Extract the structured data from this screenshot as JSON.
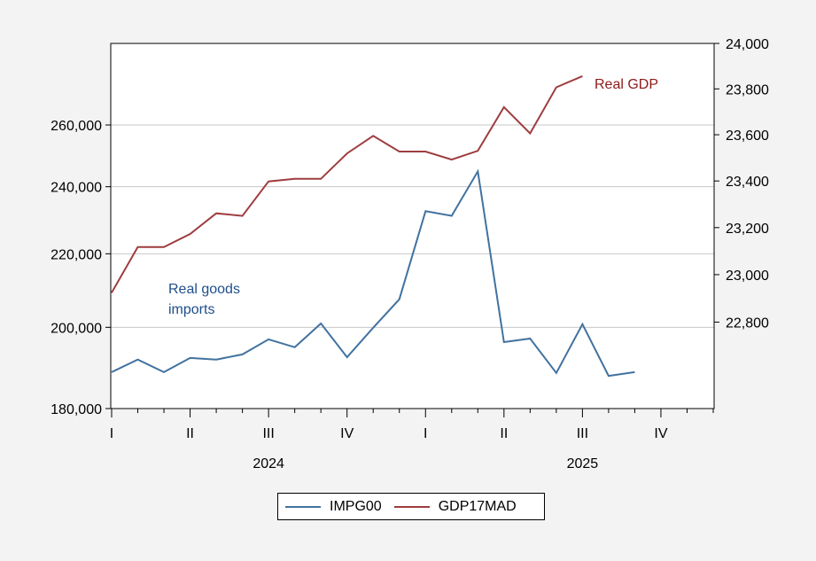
{
  "chart_data": {
    "type": "line",
    "title": "",
    "x": [
      "2024M01",
      "2024M02",
      "2024M03",
      "2024M04",
      "2024M05",
      "2024M06",
      "2024M07",
      "2024M08",
      "2024M09",
      "2024M10",
      "2024M11",
      "2024M12",
      "2025M01",
      "2025M02",
      "2025M03",
      "2025M04",
      "2025M05",
      "2025M06",
      "2025M07",
      "2025M08",
      "2025M09",
      "2025M10",
      "2025M11",
      "2025M12"
    ],
    "x_quarter_labels": [
      "I",
      "II",
      "III",
      "IV",
      "I",
      "II",
      "III",
      "IV"
    ],
    "x_year_labels": [
      "2024",
      "2025"
    ],
    "left_axis": {
      "scale": "log",
      "range": [
        180000,
        289000
      ],
      "ticks": [
        180000,
        200000,
        220000,
        240000,
        260000
      ],
      "tick_labels": [
        "180,000",
        "200,000",
        "220,000",
        "240,000",
        "260,000"
      ]
    },
    "right_axis": {
      "scale": "log",
      "range": [
        22440,
        24000
      ],
      "ticks": [
        22800,
        23000,
        23200,
        23400,
        23600,
        23800,
        24000
      ],
      "tick_labels": [
        "22,800",
        "23,000",
        "23,200",
        "23,400",
        "23,600",
        "23,800",
        "24,000"
      ]
    },
    "grid": true,
    "series": [
      {
        "name": "IMPG00",
        "axis": "left",
        "color": "#41729f",
        "values": [
          188700,
          191800,
          188700,
          192200,
          191800,
          193100,
          196900,
          194900,
          201000,
          192400,
          199900,
          207400,
          232500,
          231100,
          244800,
          196200,
          197100,
          188500,
          200800,
          187800,
          188700,
          null,
          null,
          null
        ]
      },
      {
        "name": "GDP17MAD",
        "axis": "right",
        "color": "#9e3d3f",
        "values": [
          22924,
          23117,
          23117,
          23173,
          23261,
          23250,
          23398,
          23409,
          23409,
          23519,
          23595,
          23527,
          23527,
          23492,
          23530,
          23720,
          23606,
          23807,
          23856,
          null,
          null,
          null,
          null,
          null
        ]
      }
    ],
    "annotations": [
      {
        "text_lines": [
          "Real goods",
          "imports"
        ],
        "color": "#1f4e8c",
        "series": "IMPG00"
      },
      {
        "text_lines": [
          "Real GDP"
        ],
        "color": "#8b1a1a",
        "series": "GDP17MAD"
      }
    ],
    "legend": {
      "placement": "bottom-center",
      "entries": [
        "IMPG00",
        "GDP17MAD"
      ]
    }
  }
}
